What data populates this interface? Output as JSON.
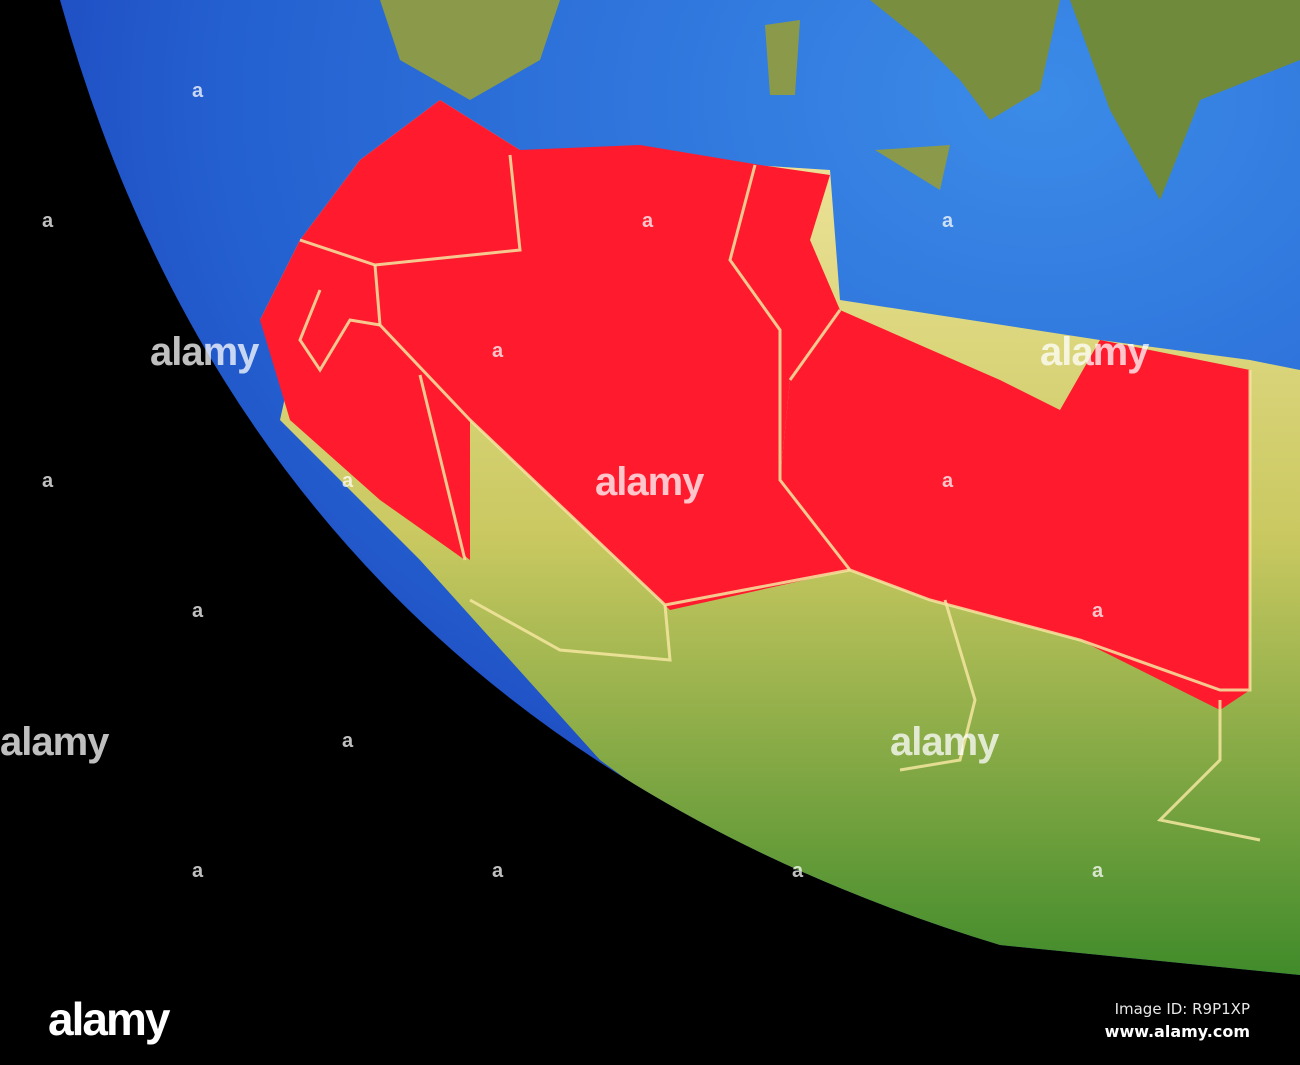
{
  "image": {
    "subject": "globe",
    "colors": {
      "space": "#000000",
      "ocean": "#2a6fd6",
      "highlight": "#ff1a2e",
      "land_green": "#5d9a2e",
      "land_desert": "#e8d88a",
      "border": "#f4e6a0"
    }
  },
  "watermark": {
    "brand": "alamy",
    "mark": "a"
  },
  "footer": {
    "logo": "alamy",
    "image_id": "Image ID: R9P1XP",
    "website": "www.alamy.com"
  }
}
